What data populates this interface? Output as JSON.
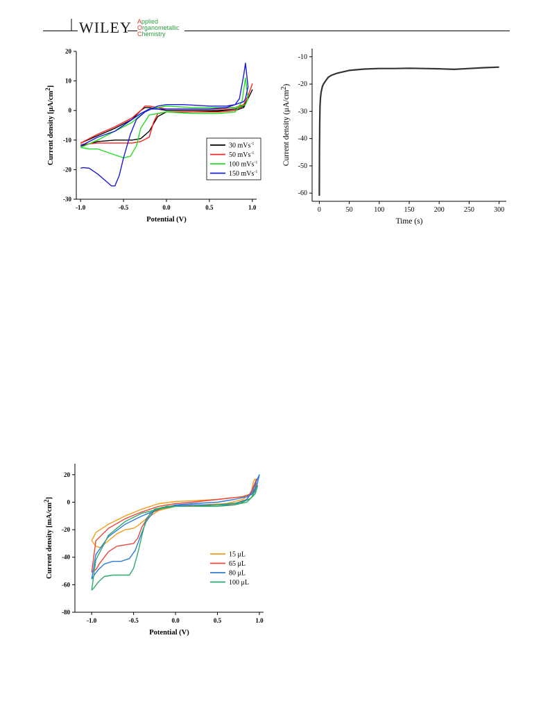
{
  "header": {
    "publisher": "WILEY",
    "journal_lines": [
      {
        "cap": "A",
        "rest": "pplied"
      },
      {
        "cap": "O",
        "rest": "rganometallic"
      },
      {
        "cap": "C",
        "rest": "hemistry"
      }
    ],
    "colors": {
      "rule": "#000000",
      "journal": "#2ea043",
      "journal_cap": "#d73a2a"
    }
  },
  "chart_data": [
    {
      "id": "cv-scan-rate",
      "type": "line",
      "xlabel": "Potential (V)",
      "ylabel": "Current density [μA/cm",
      "ylabel_sup": "2",
      "ylabel_end": "]",
      "xlim": [
        -1.05,
        1.05
      ],
      "ylim": [
        -30,
        20
      ],
      "xticks": [
        -1.0,
        -0.5,
        0.0,
        0.5,
        1.0
      ],
      "xtick_labels": [
        "-1.0",
        "-0.5",
        "0.0",
        "0.5",
        "1.0"
      ],
      "yticks": [
        -30,
        -20,
        -10,
        0,
        10,
        20
      ],
      "ytick_labels": [
        "-30",
        "-20",
        "-10",
        "0",
        "10",
        "20"
      ],
      "grid": false,
      "legend_position": "bottom-right",
      "legend_boxed": true,
      "series": [
        {
          "name": "30 mVs",
          "name_sup": "-1",
          "color": "#000000",
          "x": [
            -1.0,
            -0.8,
            -0.6,
            -0.4,
            -0.3,
            -0.2,
            -0.1,
            0.0,
            0.3,
            0.6,
            0.8,
            0.9,
            0.95,
            1.0,
            0.95,
            0.9,
            0.8,
            0.6,
            0.3,
            0.0,
            -0.1,
            -0.2,
            -0.25,
            -0.3,
            -0.4,
            -0.6,
            -0.8,
            -1.0
          ],
          "y": [
            -12,
            -10.5,
            -10,
            -10,
            -9.5,
            -7,
            -2,
            -0.5,
            -0.5,
            -0.3,
            0,
            1,
            4,
            7,
            4,
            1.5,
            0.5,
            0,
            0,
            0,
            0.5,
            1,
            1,
            0,
            -3,
            -6,
            -8.5,
            -11
          ]
        },
        {
          "name": "50 mVs",
          "name_sup": "-1",
          "color": "#ff2020",
          "x": [
            -1.0,
            -0.8,
            -0.6,
            -0.4,
            -0.3,
            -0.2,
            -0.15,
            -0.1,
            0.0,
            0.3,
            0.6,
            0.8,
            0.9,
            0.95,
            1.0,
            0.95,
            0.9,
            0.8,
            0.6,
            0.3,
            0.0,
            -0.1,
            -0.2,
            -0.25,
            -0.3,
            -0.4,
            -0.6,
            -0.8,
            -1.0
          ],
          "y": [
            -11.5,
            -11,
            -11,
            -11,
            -10.5,
            -9,
            -4,
            -1,
            -0.5,
            -0.5,
            -0.5,
            0,
            2,
            5,
            9,
            5,
            2,
            1,
            0.5,
            0.5,
            0.5,
            1,
            1.5,
            1.5,
            0,
            -2.5,
            -5.5,
            -8,
            -11
          ]
        },
        {
          "name": "100 mVs",
          "name_sup": "-1",
          "color": "#22dd22",
          "x": [
            -1.0,
            -0.9,
            -0.8,
            -0.6,
            -0.5,
            -0.42,
            -0.35,
            -0.3,
            -0.2,
            0.0,
            0.3,
            0.6,
            0.8,
            0.88,
            0.92,
            0.95,
            0.92,
            0.88,
            0.8,
            0.6,
            0.3,
            0.0,
            -0.2,
            -0.3,
            -0.4,
            -0.5,
            -0.6,
            -0.8,
            -1.0
          ],
          "y": [
            -12.5,
            -13,
            -13,
            -15,
            -16,
            -15.5,
            -12,
            -6,
            -1.5,
            -0.5,
            -1,
            -1,
            -0.5,
            3,
            11,
            4,
            2,
            1.5,
            1,
            1,
            1,
            1.5,
            0.5,
            -1.5,
            -4,
            -5.5,
            -7,
            -10,
            -12.5
          ]
        },
        {
          "name": "150 mVs",
          "name_sup": "-1",
          "color": "#1a1ad8",
          "x": [
            -1.0,
            -0.97,
            -0.9,
            -0.8,
            -0.7,
            -0.64,
            -0.6,
            -0.55,
            -0.5,
            -0.42,
            -0.35,
            -0.25,
            -0.1,
            0.0,
            0.2,
            0.5,
            0.7,
            0.8,
            0.85,
            0.9,
            0.92,
            0.95,
            0.92,
            0.9,
            0.85,
            0.8,
            0.7,
            0.5,
            0.3,
            0.0,
            -0.2,
            -0.3,
            -0.4,
            -0.5,
            -0.6,
            -0.8,
            -1.0
          ],
          "y": [
            -19.5,
            -19.3,
            -19.5,
            -21.5,
            -24,
            -25.5,
            -25.5,
            -22,
            -16,
            -8,
            -3,
            -0.5,
            1.5,
            2,
            2,
            1.5,
            1.5,
            2,
            4,
            12,
            16,
            8,
            4,
            3,
            2.5,
            2,
            1,
            0.5,
            0.5,
            0.5,
            0.5,
            -1,
            -3,
            -5,
            -7,
            -9,
            -12
          ]
        }
      ]
    },
    {
      "id": "chronoamperometry",
      "type": "line",
      "xlabel": "Time (s)",
      "ylabel": "Current density (μA/cm",
      "ylabel_sup": "2",
      "ylabel_end": ")",
      "xlim": [
        -12,
        312
      ],
      "ylim": [
        -63,
        -7
      ],
      "xticks": [
        0,
        50,
        100,
        150,
        200,
        250,
        300
      ],
      "xtick_labels": [
        "0",
        "50",
        "100",
        "150",
        "200",
        "250",
        "300"
      ],
      "yticks": [
        -60,
        -50,
        -40,
        -30,
        -20,
        -10
      ],
      "ytick_labels": [
        "-60",
        "-50",
        "-40",
        "-30",
        "-20",
        "-10"
      ],
      "grid": false,
      "series": [
        {
          "color": "#333333",
          "x": [
            0,
            0.3,
            0.7,
            1.2,
            2,
            3,
            5,
            7,
            10,
            15,
            20,
            30,
            40,
            50,
            75,
            100,
            125,
            150,
            175,
            200,
            225,
            250,
            275,
            300
          ],
          "y": [
            -61,
            -45,
            -34,
            -28,
            -25,
            -23,
            -21,
            -20,
            -19,
            -17.5,
            -16.8,
            -16,
            -15.5,
            -15,
            -14.5,
            -14.3,
            -14.3,
            -14.2,
            -14.3,
            -14.4,
            -14.6,
            -14.3,
            -14,
            -13.8
          ]
        }
      ]
    },
    {
      "id": "cv-volume",
      "type": "line",
      "xlabel": "Potential (V)",
      "ylabel": "Current density [mA/cm",
      "ylabel_sup": "2",
      "ylabel_end": "]",
      "xlim": [
        -1.2,
        1.05
      ],
      "ylim": [
        -80,
        28
      ],
      "xticks": [
        -1.0,
        -0.5,
        0.0,
        0.5,
        1.0
      ],
      "xtick_labels": [
        "-1.0",
        "-0.5",
        "0.0",
        "0.5",
        "1.0"
      ],
      "yticks": [
        -80,
        -60,
        -40,
        -20,
        0,
        20
      ],
      "ytick_labels": [
        "-80",
        "-60",
        "-40",
        "-20",
        "0",
        "20"
      ],
      "grid": false,
      "legend_position": "bottom-right",
      "legend_boxed": false,
      "series": [
        {
          "name": "15 μL",
          "color": "#f39c1e",
          "x": [
            -1.0,
            -0.95,
            -0.9,
            -0.8,
            -0.7,
            -0.6,
            -0.5,
            -0.45,
            -0.35,
            -0.2,
            0.0,
            0.3,
            0.6,
            0.8,
            0.9,
            0.93,
            0.95,
            0.97,
            0.95,
            0.9,
            0.8,
            0.5,
            0.2,
            0.0,
            -0.2,
            -0.4,
            -0.6,
            -0.8,
            -0.95,
            -1.0
          ],
          "y": [
            -28,
            -32,
            -33,
            -28,
            -23,
            -20,
            -19,
            -17,
            -12,
            -6,
            -3,
            -2,
            -1,
            2,
            6,
            15,
            17,
            12,
            9,
            6,
            4,
            2,
            1,
            0.5,
            -1,
            -5,
            -10,
            -16,
            -22,
            -28
          ]
        },
        {
          "name": "65 μL",
          "color": "#e8453c",
          "x": [
            -1.0,
            -0.95,
            -0.9,
            -0.8,
            -0.7,
            -0.6,
            -0.5,
            -0.45,
            -0.4,
            -0.3,
            -0.1,
            0.2,
            0.5,
            0.7,
            0.85,
            0.92,
            0.97,
            0.95,
            0.9,
            0.8,
            0.5,
            0.2,
            0.0,
            -0.2,
            -0.4,
            -0.6,
            -0.8,
            -0.95,
            -1.0
          ],
          "y": [
            -51,
            -49,
            -44,
            -36,
            -32,
            -31,
            -30,
            -26,
            -18,
            -8,
            -3,
            -2,
            -2,
            -1,
            2,
            10,
            17,
            10,
            6,
            4,
            2,
            0,
            -1,
            -3,
            -7,
            -12,
            -19,
            -28,
            -51
          ]
        },
        {
          "name": "80 μL",
          "color": "#2c7bd6",
          "x": [
            -1.0,
            -0.97,
            -0.92,
            -0.85,
            -0.75,
            -0.65,
            -0.55,
            -0.48,
            -0.42,
            -0.35,
            -0.25,
            -0.1,
            0.2,
            0.5,
            0.7,
            0.85,
            0.92,
            0.97,
            1.0,
            0.97,
            0.92,
            0.85,
            0.7,
            0.5,
            0.2,
            0.0,
            -0.2,
            -0.4,
            -0.6,
            -0.8,
            -0.95,
            -1.0
          ],
          "y": [
            -56,
            -53,
            -49,
            -45,
            -43,
            -43,
            -41,
            -35,
            -25,
            -14,
            -6,
            -3,
            -2,
            -2,
            -2,
            2,
            8,
            16,
            20,
            12,
            6,
            4,
            2,
            0,
            -1,
            -2,
            -5,
            -10,
            -16,
            -25,
            -38,
            -56
          ]
        },
        {
          "name": "100 μL",
          "color": "#2fa86b",
          "x": [
            -1.0,
            -0.97,
            -0.92,
            -0.85,
            -0.75,
            -0.65,
            -0.55,
            -0.5,
            -0.45,
            -0.4,
            -0.35,
            -0.25,
            -0.1,
            0.2,
            0.5,
            0.7,
            0.85,
            0.9,
            0.95,
            0.98,
            0.95,
            0.9,
            0.8,
            0.5,
            0.2,
            0.0,
            -0.2,
            -0.4,
            -0.6,
            -0.8,
            -0.95,
            -1.0
          ],
          "y": [
            -64,
            -62,
            -58,
            -54,
            -53,
            -53,
            -53,
            -48,
            -37,
            -24,
            -12,
            -5,
            -3,
            -3,
            -3,
            -2,
            0,
            3,
            8,
            12,
            6,
            3,
            0,
            -2,
            -3,
            -3,
            -5,
            -8,
            -14,
            -24,
            -42,
            -64
          ]
        }
      ]
    }
  ]
}
